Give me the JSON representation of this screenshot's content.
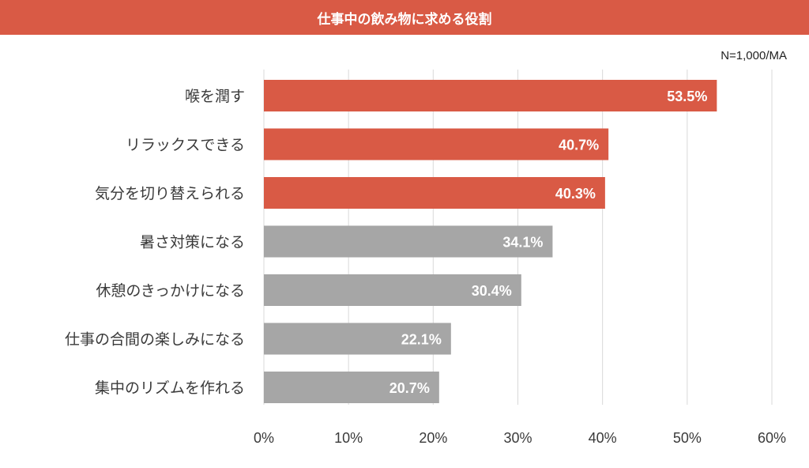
{
  "title": "仕事中の飲み物に求める役割",
  "note": "N=1,000/MA",
  "colors": {
    "title_bar": "#d95a45",
    "highlight_bar": "#d95a45",
    "other_bar": "#a6a6a6",
    "grid": "#d9d9d9"
  },
  "chart_data": {
    "type": "bar",
    "orientation": "horizontal",
    "categories": [
      "喉を潤す",
      "リラックスできる",
      "気分を切り替えられる",
      "暑さ対策になる",
      "休憩のきっかけになる",
      "仕事の合間の楽しみになる",
      "集中のリズムを作れる"
    ],
    "values": [
      53.5,
      40.7,
      40.3,
      34.1,
      30.4,
      22.1,
      20.7
    ],
    "value_labels": [
      "53.5%",
      "40.7%",
      "40.3%",
      "34.1%",
      "30.4%",
      "22.1%",
      "20.7%"
    ],
    "highlighted": [
      true,
      true,
      true,
      false,
      false,
      false,
      false
    ],
    "xlim": [
      0,
      60
    ],
    "xticks": [
      0,
      10,
      20,
      30,
      40,
      50,
      60
    ],
    "xtick_labels": [
      "0%",
      "10%",
      "20%",
      "30%",
      "40%",
      "50%",
      "60%"
    ],
    "grid": true,
    "legend": "none"
  }
}
